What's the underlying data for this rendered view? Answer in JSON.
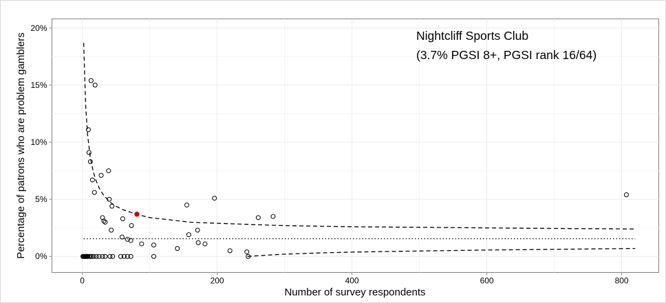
{
  "chart_data": {
    "type": "scatter",
    "xlabel": "Number of survey respondents",
    "ylabel": "Percentage of patrons who are problem gamblers",
    "xlim": [
      -45,
      855
    ],
    "ylim": [
      -1.4,
      20.8
    ],
    "x_ticks": [
      0,
      200,
      400,
      600,
      800
    ],
    "x_tick_labels": [
      "0",
      "200",
      "400",
      "600",
      "800"
    ],
    "y_ticks": [
      0,
      5,
      10,
      15,
      20
    ],
    "y_tick_labels": [
      "0%",
      "5%",
      "10%",
      "15%",
      "20%"
    ],
    "grid": true,
    "annotation": {
      "line1": "Nightcliff Sports Club",
      "line2": "(3.7% PGSI 8+,  PGSI rank 16/64)"
    },
    "highlight": {
      "x": 81,
      "y": 3.7,
      "color": "#cc0000"
    },
    "baseline": 1.55,
    "points": [
      {
        "x": 1,
        "y": 0
      },
      {
        "x": 2,
        "y": 0
      },
      {
        "x": 3,
        "y": 0
      },
      {
        "x": 4,
        "y": 0
      },
      {
        "x": 5,
        "y": 0
      },
      {
        "x": 6,
        "y": 0
      },
      {
        "x": 7,
        "y": 0
      },
      {
        "x": 8,
        "y": 0
      },
      {
        "x": 10,
        "y": 0
      },
      {
        "x": 12,
        "y": 0
      },
      {
        "x": 14,
        "y": 0
      },
      {
        "x": 17,
        "y": 0
      },
      {
        "x": 21,
        "y": 0
      },
      {
        "x": 25,
        "y": 0
      },
      {
        "x": 30,
        "y": 0
      },
      {
        "x": 34,
        "y": 0
      },
      {
        "x": 41,
        "y": 0
      },
      {
        "x": 45,
        "y": 0
      },
      {
        "x": 57,
        "y": 0
      },
      {
        "x": 62,
        "y": 0
      },
      {
        "x": 67,
        "y": 0
      },
      {
        "x": 72,
        "y": 0
      },
      {
        "x": 106,
        "y": 0
      },
      {
        "x": 246,
        "y": 0
      },
      {
        "x": 9,
        "y": 11.1
      },
      {
        "x": 10,
        "y": 9.1
      },
      {
        "x": 12,
        "y": 8.3
      },
      {
        "x": 13,
        "y": 15.4
      },
      {
        "x": 15,
        "y": 6.7
      },
      {
        "x": 18,
        "y": 5.6
      },
      {
        "x": 19,
        "y": 15.0
      },
      {
        "x": 28,
        "y": 7.1
      },
      {
        "x": 30,
        "y": 3.4
      },
      {
        "x": 32,
        "y": 3.1
      },
      {
        "x": 34,
        "y": 3.0
      },
      {
        "x": 39,
        "y": 7.5
      },
      {
        "x": 40,
        "y": 5.0
      },
      {
        "x": 43,
        "y": 2.3
      },
      {
        "x": 44,
        "y": 4.4
      },
      {
        "x": 59,
        "y": 1.7
      },
      {
        "x": 60,
        "y": 3.3
      },
      {
        "x": 67,
        "y": 1.5
      },
      {
        "x": 72,
        "y": 1.4
      },
      {
        "x": 73,
        "y": 2.7
      },
      {
        "x": 88,
        "y": 1.1
      },
      {
        "x": 106,
        "y": 1.0
      },
      {
        "x": 141,
        "y": 0.7
      },
      {
        "x": 155,
        "y": 4.5
      },
      {
        "x": 158,
        "y": 1.9
      },
      {
        "x": 171,
        "y": 2.3
      },
      {
        "x": 172,
        "y": 1.2
      },
      {
        "x": 182,
        "y": 1.1
      },
      {
        "x": 196,
        "y": 5.1
      },
      {
        "x": 219,
        "y": 0.5
      },
      {
        "x": 244,
        "y": 0.4
      },
      {
        "x": 261,
        "y": 3.4
      },
      {
        "x": 283,
        "y": 3.5
      },
      {
        "x": 807,
        "y": 5.4
      }
    ],
    "funnel_upper": [
      [
        2,
        18.7
      ],
      [
        5,
        13.2
      ],
      [
        8,
        10.6
      ],
      [
        12,
        8.6
      ],
      [
        16,
        7.5
      ],
      [
        20,
        6.7
      ],
      [
        25,
        6.0
      ],
      [
        30,
        5.5
      ],
      [
        40,
        4.8
      ],
      [
        50,
        4.4
      ],
      [
        60,
        4.1
      ],
      [
        80,
        3.7
      ],
      [
        100,
        3.4
      ],
      [
        130,
        3.2
      ],
      [
        160,
        3.0
      ],
      [
        200,
        2.9
      ],
      [
        250,
        2.8
      ],
      [
        300,
        2.7
      ],
      [
        400,
        2.6
      ],
      [
        500,
        2.55
      ],
      [
        600,
        2.5
      ],
      [
        700,
        2.45
      ],
      [
        820,
        2.4
      ]
    ],
    "funnel_lower": [
      [
        245,
        0.0
      ],
      [
        270,
        0.1
      ],
      [
        300,
        0.2
      ],
      [
        350,
        0.3
      ],
      [
        400,
        0.38
      ],
      [
        500,
        0.48
      ],
      [
        600,
        0.56
      ],
      [
        700,
        0.62
      ],
      [
        820,
        0.7
      ]
    ],
    "baseline_range": [
      2,
      820
    ]
  }
}
